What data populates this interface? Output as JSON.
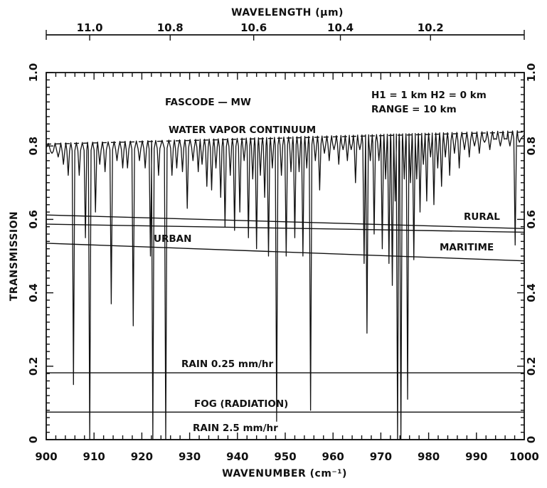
{
  "chart_data": {
    "type": "line",
    "xlabel": "WAVENUMBER (cm⁻¹)",
    "ylabel": "TRANSMISSION",
    "top_axis_label": "WAVELENGTH (µm)",
    "xlim": [
      900,
      1000
    ],
    "ylim": [
      0,
      1.0
    ],
    "x_ticks": [
      900,
      910,
      920,
      930,
      940,
      950,
      960,
      970,
      980,
      990,
      1000
    ],
    "y_ticks": [
      0,
      0.2,
      0.4,
      0.6,
      0.8,
      1.0
    ],
    "y_tick_labels": [
      "0",
      "0.2",
      "0.4",
      "0.6",
      "0.8",
      "1.0"
    ],
    "top_ticks": [
      {
        "label": "11.0",
        "wavenumber": 909.09
      },
      {
        "label": "10.8",
        "wavenumber": 925.93
      },
      {
        "label": "10.6",
        "wavenumber": 943.4
      },
      {
        "label": "10.4",
        "wavenumber": 961.54
      },
      {
        "label": "10.2",
        "wavenumber": 980.39
      }
    ],
    "annotations": {
      "model": "FASCODE — MW",
      "geometry_line1": "H1 = 1 km   H2 = 0 km",
      "geometry_line2": "RANGE = 10 km"
    },
    "series": [
      {
        "name": "WATER VAPOR CONTINUUM",
        "style": "dashed",
        "x": [
          900,
          1000
        ],
        "y": [
          0.805,
          0.838
        ]
      },
      {
        "name": "RURAL",
        "x": [
          900,
          1000
        ],
        "y": [
          0.612,
          0.575
        ]
      },
      {
        "name": "URBAN",
        "x": [
          900,
          1000
        ],
        "y": [
          0.587,
          0.565
        ]
      },
      {
        "name": "MARITIME",
        "x": [
          900,
          1000
        ],
        "y": [
          0.535,
          0.487
        ]
      },
      {
        "name": "RAIN 0.25 mm/hr",
        "x": [
          900,
          1000
        ],
        "y": [
          0.182,
          0.182
        ]
      },
      {
        "name": "FOG (RADIATION)",
        "x": [
          900,
          1000
        ],
        "y": [
          0.075,
          0.075
        ]
      },
      {
        "name": "RAIN 2.5 mm/hr",
        "x": [
          900,
          1000
        ],
        "y": [
          0.0,
          0.0
        ]
      }
    ],
    "absorption_spectrum": {
      "baseline_y_at_900": 0.795,
      "baseline_y_at_1000": 0.83,
      "lines": [
        [
          901.2,
          0.78
        ],
        [
          902.5,
          0.77
        ],
        [
          903.6,
          0.75
        ],
        [
          904.6,
          0.72
        ],
        [
          905.7,
          0.15
        ],
        [
          906.9,
          0.72
        ],
        [
          908.2,
          0.55
        ],
        [
          909.1,
          0.0
        ],
        [
          910.3,
          0.62
        ],
        [
          911.2,
          0.75
        ],
        [
          912.3,
          0.73
        ],
        [
          913.6,
          0.37
        ],
        [
          914.8,
          0.76
        ],
        [
          916.0,
          0.74
        ],
        [
          917.0,
          0.74
        ],
        [
          918.2,
          0.31
        ],
        [
          919.5,
          0.76
        ],
        [
          920.7,
          0.74
        ],
        [
          921.8,
          0.5
        ],
        [
          922.3,
          0.0
        ],
        [
          923.5,
          0.72
        ],
        [
          925.0,
          0.0
        ],
        [
          926.3,
          0.72
        ],
        [
          927.3,
          0.74
        ],
        [
          928.5,
          0.73
        ],
        [
          929.5,
          0.63
        ],
        [
          930.7,
          0.76
        ],
        [
          931.8,
          0.73
        ],
        [
          932.6,
          0.75
        ],
        [
          933.6,
          0.69
        ],
        [
          934.6,
          0.68
        ],
        [
          935.5,
          0.74
        ],
        [
          936.5,
          0.66
        ],
        [
          937.4,
          0.58
        ],
        [
          938.5,
          0.72
        ],
        [
          939.4,
          0.57
        ],
        [
          940.5,
          0.62
        ],
        [
          941.4,
          0.76
        ],
        [
          942.3,
          0.55
        ],
        [
          943.2,
          0.71
        ],
        [
          944.0,
          0.52
        ],
        [
          944.8,
          0.72
        ],
        [
          945.7,
          0.66
        ],
        [
          946.5,
          0.5
        ],
        [
          947.3,
          0.74
        ],
        [
          948.2,
          0.05
        ],
        [
          949.2,
          0.72
        ],
        [
          950.2,
          0.5
        ],
        [
          951.2,
          0.73
        ],
        [
          952.0,
          0.55
        ],
        [
          952.9,
          0.73
        ],
        [
          953.7,
          0.5
        ],
        [
          954.5,
          0.74
        ],
        [
          955.3,
          0.08
        ],
        [
          956.3,
          0.76
        ],
        [
          957.2,
          0.68
        ],
        [
          958.2,
          0.78
        ],
        [
          959.2,
          0.76
        ],
        [
          960.2,
          0.79
        ],
        [
          961.2,
          0.75
        ],
        [
          962.1,
          0.79
        ],
        [
          963.0,
          0.76
        ],
        [
          963.8,
          0.79
        ],
        [
          964.7,
          0.7
        ],
        [
          965.6,
          0.79
        ],
        [
          966.5,
          0.48
        ],
        [
          967.1,
          0.29
        ],
        [
          967.8,
          0.76
        ],
        [
          968.6,
          0.56
        ],
        [
          969.6,
          0.76
        ],
        [
          970.3,
          0.52
        ],
        [
          971.0,
          0.71
        ],
        [
          971.7,
          0.48
        ],
        [
          972.4,
          0.42
        ],
        [
          973.0,
          0.65
        ],
        [
          973.5,
          0.0
        ],
        [
          974.2,
          0.0
        ],
        [
          974.9,
          0.71
        ],
        [
          975.6,
          0.11
        ],
        [
          976.2,
          0.7
        ],
        [
          976.9,
          0.49
        ],
        [
          977.5,
          0.71
        ],
        [
          978.2,
          0.62
        ],
        [
          978.9,
          0.75
        ],
        [
          979.6,
          0.65
        ],
        [
          980.4,
          0.77
        ],
        [
          981.1,
          0.64
        ],
        [
          981.9,
          0.74
        ],
        [
          982.7,
          0.69
        ],
        [
          983.5,
          0.77
        ],
        [
          984.4,
          0.72
        ],
        [
          985.4,
          0.78
        ],
        [
          986.4,
          0.74
        ],
        [
          987.5,
          0.79
        ],
        [
          988.5,
          0.77
        ],
        [
          989.6,
          0.8
        ],
        [
          990.6,
          0.78
        ],
        [
          991.7,
          0.81
        ],
        [
          992.8,
          0.79
        ],
        [
          993.9,
          0.82
        ],
        [
          995.0,
          0.8
        ],
        [
          996.1,
          0.82
        ],
        [
          997.0,
          0.8
        ],
        [
          998.1,
          0.53
        ],
        [
          999.0,
          0.81
        ]
      ]
    },
    "legend": "inline labels on curves",
    "grid": false
  }
}
